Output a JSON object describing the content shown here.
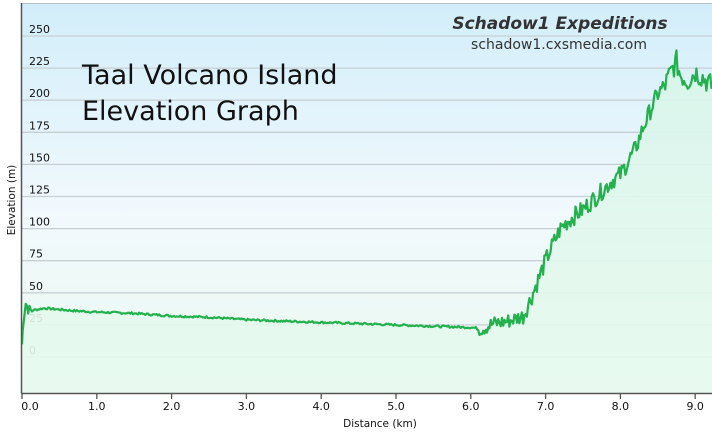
{
  "chart_data": {
    "type": "area",
    "title": "Taal Volcano Island Elevation Graph",
    "title_lines": [
      "Taal Volcano Island",
      "Elevation Graph"
    ],
    "xlabel": "Distance  (km)",
    "ylabel": "Elevation (m)",
    "xlim": [
      0,
      9.25
    ],
    "ylim": [
      -50,
      275
    ],
    "x_ticks": [
      "0.0",
      "1.0",
      "2.0",
      "3.0",
      "4.0",
      "5.0",
      "6.0",
      "7.0",
      "8.0",
      "9.0"
    ],
    "y_ticks": [
      "0",
      "25",
      "50",
      "75",
      "100",
      "125",
      "150",
      "175",
      "200",
      "225",
      "250"
    ],
    "grid": true,
    "line_color": "#22b14c",
    "series": [
      {
        "name": "Elevation",
        "x": [
          0.0,
          0.02,
          0.05,
          0.1,
          0.2,
          0.3,
          0.5,
          0.7,
          1.0,
          1.5,
          2.0,
          2.5,
          3.0,
          3.5,
          4.0,
          4.5,
          5.0,
          5.5,
          6.0,
          6.15,
          6.3,
          6.5,
          6.7,
          6.8,
          6.9,
          7.0,
          7.1,
          7.2,
          7.3,
          7.5,
          7.7,
          7.9,
          8.0,
          8.1,
          8.2,
          8.3,
          8.4,
          8.5,
          8.6,
          8.7,
          8.75,
          8.8,
          8.9,
          9.0,
          9.1,
          9.2,
          9.25
        ],
        "y": [
          10,
          30,
          42,
          36,
          37,
          38,
          37,
          36,
          35,
          34,
          32,
          31,
          29,
          28,
          27,
          26,
          25,
          24,
          23,
          22,
          26,
          28,
          32,
          45,
          60,
          75,
          88,
          100,
          106,
          115,
          126,
          138,
          142,
          152,
          162,
          178,
          192,
          205,
          212,
          225,
          230,
          220,
          215,
          222,
          218,
          212,
          210
        ]
      }
    ]
  },
  "branding": {
    "name": "Schadow1 Expeditions",
    "url": "schadow1.cxsmedia.com"
  },
  "colors": {
    "line": "#22b14c",
    "bg_top": "#d2eefa",
    "bg_bottom": "#eafaf0",
    "grid": "#c8cfd4",
    "axis": "#555555"
  }
}
